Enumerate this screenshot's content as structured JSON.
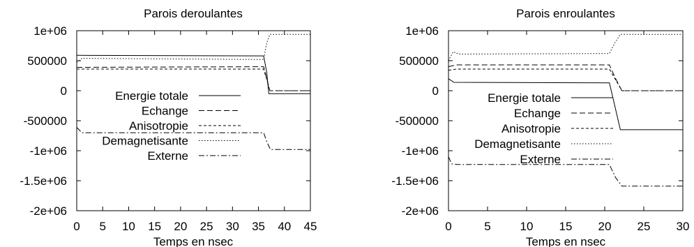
{
  "chart_data": [
    {
      "type": "line",
      "title": "Parois deroulantes",
      "xlabel": "Temps en nsec",
      "ylabel": "",
      "xlim": [
        0,
        45
      ],
      "ylim": [
        -2000000,
        1000000
      ],
      "x_ticks": [
        0,
        5,
        10,
        15,
        20,
        25,
        30,
        35,
        40,
        45
      ],
      "y_ticks": [
        -2000000,
        -1500000,
        -1000000,
        -500000,
        0,
        500000,
        1000000
      ],
      "x_tick_labels": [
        "0",
        "5",
        "10",
        "15",
        "20",
        "25",
        "30",
        "35",
        "40",
        "45"
      ],
      "y_tick_labels": [
        "-2e+06",
        "-1.5e+06",
        "-1e+06",
        "-500000",
        "0",
        "500000",
        "1e+06"
      ],
      "legend_position": "center-left",
      "grid": false,
      "series": [
        {
          "name": "Energie totale",
          "dash": "solid",
          "x": [
            0,
            36,
            36.6,
            37,
            45
          ],
          "y": [
            590000,
            580000,
            300000,
            -50000,
            -50000
          ]
        },
        {
          "name": "Echange",
          "dash": "dashed",
          "x": [
            0,
            36,
            36.6,
            37.2,
            45
          ],
          "y": [
            390000,
            400000,
            200000,
            0,
            0
          ]
        },
        {
          "name": "Anisotropie",
          "dash": "shortdash",
          "x": [
            0,
            36,
            36.6,
            37.2,
            45
          ],
          "y": [
            360000,
            360000,
            180000,
            0,
            0
          ]
        },
        {
          "name": "Demagnetisante",
          "dash": "dotted",
          "x": [
            0,
            1,
            36,
            36.6,
            37.2,
            45
          ],
          "y": [
            470000,
            540000,
            520000,
            800000,
            940000,
            940000
          ]
        },
        {
          "name": "Externe",
          "dash": "dashdot",
          "x": [
            0,
            1,
            36,
            36.6,
            37.3,
            45
          ],
          "y": [
            -610000,
            -700000,
            -700000,
            -850000,
            -980000,
            -980000
          ]
        }
      ]
    },
    {
      "type": "line",
      "title": "Parois enroulantes",
      "xlabel": "Temps en nsec",
      "ylabel": "",
      "xlim": [
        0,
        30
      ],
      "ylim": [
        -2000000,
        1000000
      ],
      "x_ticks": [
        0,
        5,
        10,
        15,
        20,
        25,
        30
      ],
      "y_ticks": [
        -2000000,
        -1500000,
        -1000000,
        -500000,
        0,
        500000,
        1000000
      ],
      "x_tick_labels": [
        "0",
        "5",
        "10",
        "15",
        "20",
        "25",
        "30"
      ],
      "y_tick_labels": [
        "-2e+06",
        "-1.5e+06",
        "-1e+06",
        "-500000",
        "0",
        "500000",
        "1e+06"
      ],
      "legend_position": "center-left",
      "grid": false,
      "series": [
        {
          "name": "Energie totale",
          "dash": "solid",
          "x": [
            0,
            0.7,
            20.6,
            21.2,
            22,
            30
          ],
          "y": [
            200000,
            140000,
            130000,
            -200000,
            -650000,
            -650000
          ]
        },
        {
          "name": "Echange",
          "dash": "dashed",
          "x": [
            0,
            1,
            20.6,
            21.4,
            22.2,
            30
          ],
          "y": [
            400000,
            430000,
            430000,
            200000,
            0,
            0
          ]
        },
        {
          "name": "Anisotropie",
          "dash": "shortdash",
          "x": [
            0,
            1,
            20.6,
            21.4,
            22.2,
            30
          ],
          "y": [
            340000,
            360000,
            360000,
            180000,
            0,
            0
          ]
        },
        {
          "name": "Demagnetisante",
          "dash": "dotted",
          "x": [
            0,
            0.6,
            1.3,
            20.6,
            21.3,
            22,
            30
          ],
          "y": [
            500000,
            650000,
            610000,
            620000,
            800000,
            940000,
            940000
          ]
        },
        {
          "name": "Externe",
          "dash": "dashdot",
          "x": [
            0,
            0.4,
            1.2,
            20.6,
            21.4,
            22.2,
            30
          ],
          "y": [
            -1100000,
            -1220000,
            -1230000,
            -1230000,
            -1450000,
            -1590000,
            -1590000
          ]
        }
      ]
    }
  ]
}
